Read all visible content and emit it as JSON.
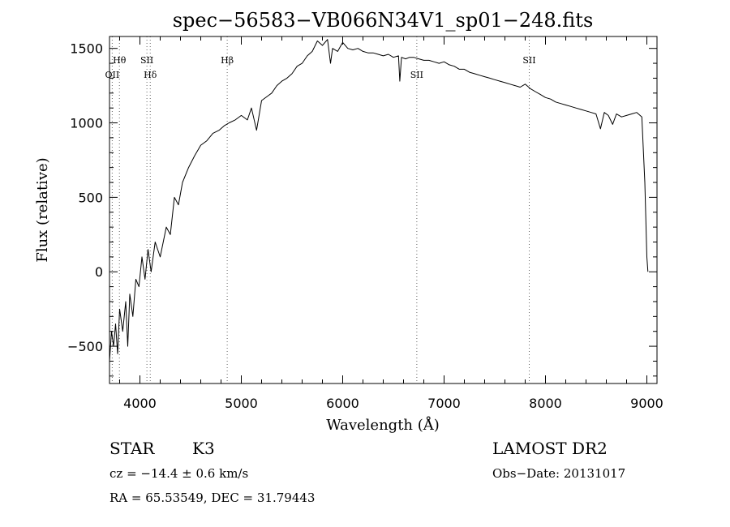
{
  "chart_data": {
    "type": "line",
    "title": "spec−56583−VB066N34V1_sp01−248.fits",
    "xlabel": "Wavelength (Å)",
    "ylabel": "Flux (relative)",
    "xlim": [
      3700,
      9100
    ],
    "ylim": [
      -750,
      1580
    ],
    "x_ticks": [
      4000,
      5000,
      6000,
      7000,
      8000,
      9000
    ],
    "x_tick_labels": [
      "4000",
      "5000",
      "6000",
      "7000",
      "8000",
      "9000"
    ],
    "y_ticks": [
      -500,
      0,
      500,
      1000,
      1500
    ],
    "y_tick_labels": [
      "−500",
      "0",
      "500",
      "1000",
      "1500"
    ],
    "grid": false,
    "legend": "none",
    "line_color": "#000000",
    "spectral_lines": [
      {
        "label": "Hθ",
        "x": 3798,
        "label_pos": "top"
      },
      {
        "label": "OII",
        "x": 3727,
        "label_pos": "middle"
      },
      {
        "label": "SII",
        "x": 4069,
        "label_pos": "top"
      },
      {
        "label": "Hδ",
        "x": 4102,
        "label_pos": "middle"
      },
      {
        "label": "Hβ",
        "x": 4861,
        "label_pos": "top"
      },
      {
        "label": "SII",
        "x": 6731,
        "label_pos": "middle"
      },
      {
        "label": "SII",
        "x": 7840,
        "label_pos": "top"
      }
    ],
    "series": [
      {
        "x": [
          3700,
          3720,
          3740,
          3760,
          3780,
          3800,
          3830,
          3860,
          3880,
          3900,
          3930,
          3960,
          3990,
          4020,
          4050,
          4080,
          4110,
          4150,
          4200,
          4260,
          4300,
          4340,
          4380,
          4420,
          4480,
          4540,
          4600,
          4660,
          4720,
          4780,
          4830,
          4880,
          4940,
          5000,
          5060,
          5100,
          5150,
          5200,
          5260,
          5300,
          5350,
          5400,
          5450,
          5500,
          5550,
          5600,
          5650,
          5700,
          5750,
          5800,
          5850,
          5880,
          5900,
          5950,
          6000,
          6050,
          6100,
          6150,
          6200,
          6250,
          6300,
          6350,
          6400,
          6450,
          6500,
          6550,
          6563,
          6580,
          6620,
          6660,
          6700,
          6750,
          6800,
          6850,
          6900,
          6950,
          7000,
          7050,
          7100,
          7150,
          7200,
          7250,
          7300,
          7350,
          7400,
          7450,
          7500,
          7550,
          7600,
          7650,
          7700,
          7750,
          7800,
          7850,
          7900,
          7950,
          8000,
          8050,
          8100,
          8150,
          8200,
          8250,
          8300,
          8350,
          8400,
          8450,
          8498,
          8542,
          8580,
          8620,
          8662,
          8700,
          8750,
          8800,
          8850,
          8900,
          8950,
          8980,
          9000,
          9010
        ],
        "y": [
          -600,
          -400,
          -500,
          -350,
          -550,
          -250,
          -400,
          -200,
          -500,
          -150,
          -300,
          -50,
          -100,
          100,
          -50,
          150,
          0,
          200,
          100,
          300,
          250,
          500,
          450,
          600,
          700,
          780,
          850,
          880,
          930,
          950,
          980,
          1000,
          1020,
          1050,
          1020,
          1100,
          950,
          1150,
          1180,
          1200,
          1250,
          1280,
          1300,
          1330,
          1380,
          1400,
          1450,
          1480,
          1550,
          1520,
          1560,
          1400,
          1500,
          1480,
          1540,
          1500,
          1490,
          1500,
          1480,
          1470,
          1470,
          1460,
          1450,
          1460,
          1440,
          1450,
          1280,
          1440,
          1430,
          1440,
          1440,
          1430,
          1420,
          1420,
          1410,
          1400,
          1410,
          1390,
          1380,
          1360,
          1360,
          1340,
          1330,
          1320,
          1310,
          1300,
          1290,
          1280,
          1270,
          1260,
          1250,
          1240,
          1260,
          1230,
          1210,
          1190,
          1170,
          1160,
          1140,
          1130,
          1120,
          1110,
          1100,
          1090,
          1080,
          1070,
          1060,
          960,
          1070,
          1050,
          990,
          1060,
          1040,
          1050,
          1060,
          1070,
          1040,
          600,
          100,
          0
        ]
      }
    ]
  },
  "footer": {
    "object_class": "STAR",
    "subclass": "K3",
    "survey": "LAMOST DR2",
    "cz": "cz = −14.4 ± 0.6 km/s",
    "obs_date": "Obs−Date: 20131017",
    "coords": "RA =  65.53549, DEC =  31.79443"
  }
}
